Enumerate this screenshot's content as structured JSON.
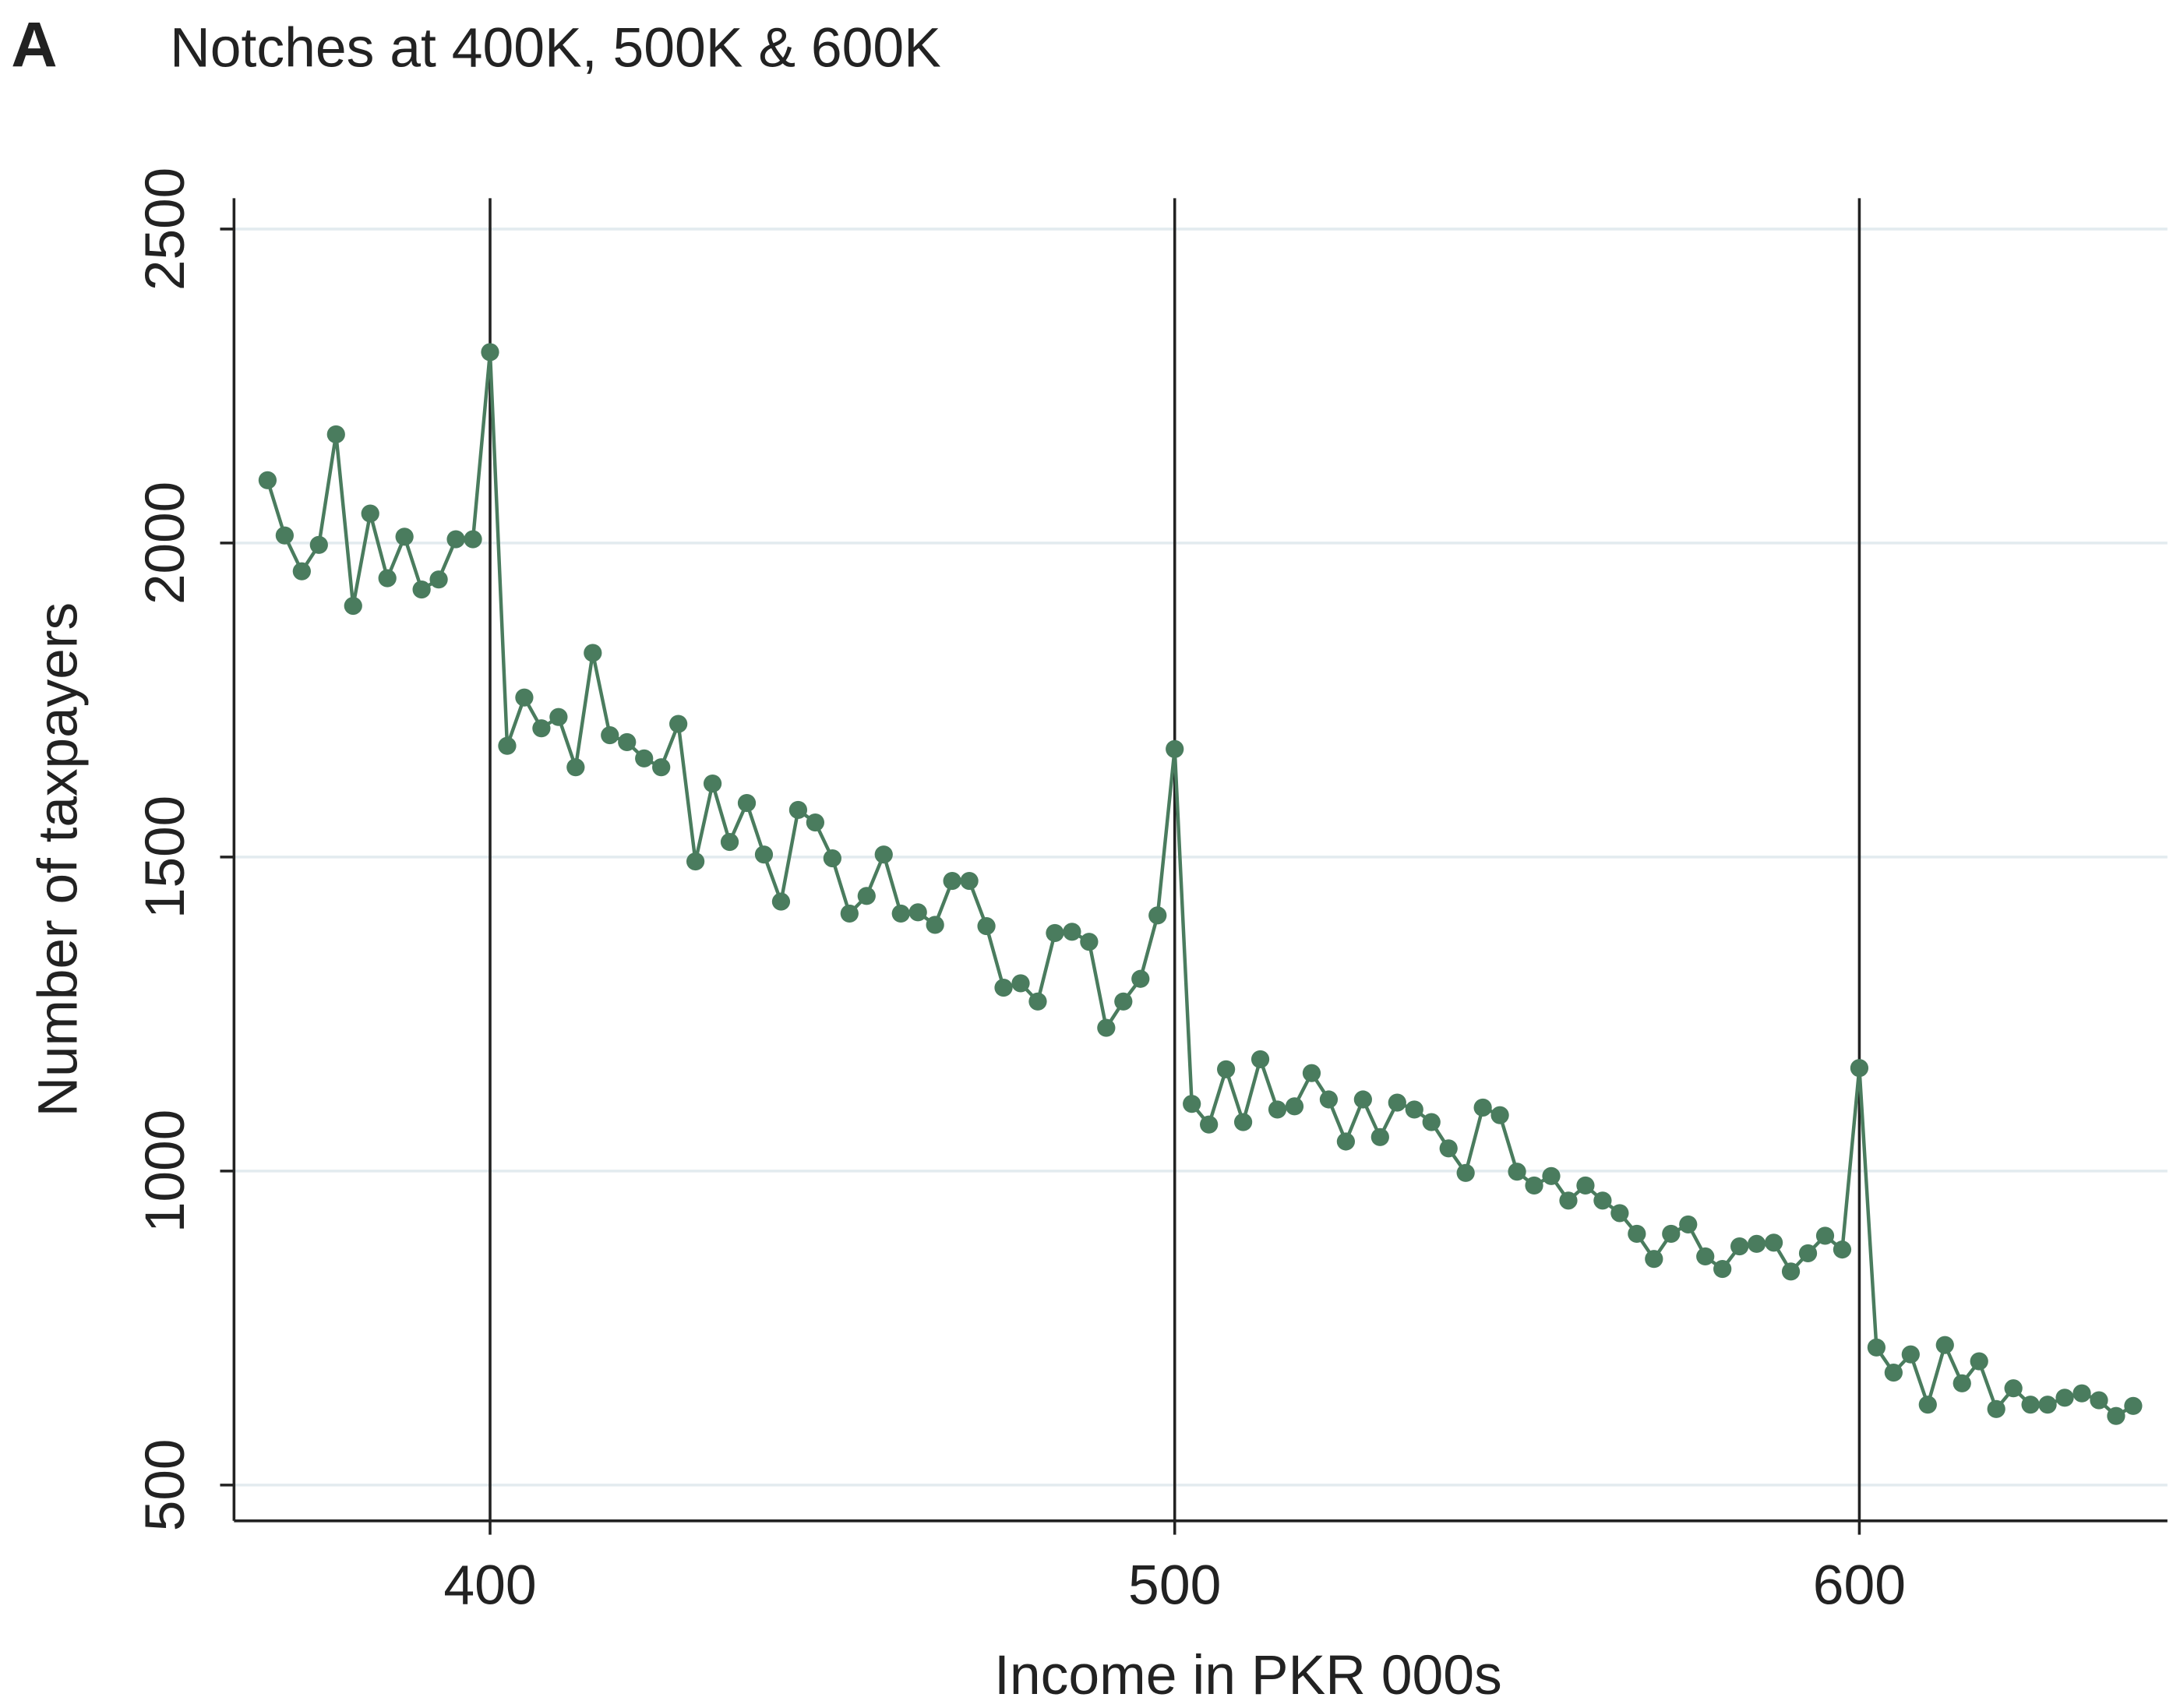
{
  "chart_data": {
    "type": "line",
    "panel_label": "A",
    "title": "Notches at 400K, 500K & 600K",
    "x_label": "Income in PKR 000s",
    "y_label": "Number of taxpayers",
    "x": [
      367.5,
      370,
      372.5,
      375,
      377.5,
      380,
      382.5,
      385,
      387.5,
      390,
      392.5,
      395,
      397.5,
      400,
      402.5,
      405,
      407.5,
      410,
      412.5,
      415,
      417.5,
      420,
      422.5,
      425,
      427.5,
      430,
      432.5,
      435,
      437.5,
      440,
      442.5,
      445,
      447.5,
      450,
      452.5,
      455,
      457.5,
      460,
      462.5,
      465,
      467.5,
      470,
      472.5,
      475,
      477.5,
      480,
      482.5,
      485,
      487.5,
      490,
      492.5,
      495,
      497.5,
      500,
      502.5,
      505,
      507.5,
      510,
      512.5,
      515,
      517.5,
      520,
      522.5,
      525,
      527.5,
      530,
      532.5,
      535,
      537.5,
      540,
      542.5,
      545,
      547.5,
      550,
      552.5,
      555,
      557.5,
      560,
      562.5,
      565,
      567.5,
      570,
      572.5,
      575,
      577.5,
      580,
      582.5,
      585,
      587.5,
      590,
      592.5,
      595,
      597.5,
      600,
      602.5,
      605,
      607.5,
      610,
      612.5,
      615,
      617.5,
      620,
      622.5,
      625,
      627.5,
      630,
      632.5,
      635,
      637.5,
      640
    ],
    "series": [
      {
        "color": "#4a7c5e",
        "values": [
          2100,
          2012,
          1955,
          1997,
          2173,
          1900,
          2047,
          1944,
          2010,
          1926,
          1942,
          2006,
          2006,
          2304,
          1677,
          1754,
          1705,
          1723,
          1643,
          1825,
          1694,
          1683,
          1657,
          1643,
          1712,
          1493,
          1617,
          1524,
          1586,
          1504,
          1429,
          1575,
          1555,
          1498,
          1410,
          1438,
          1504,
          1410,
          1412,
          1392,
          1462,
          1462,
          1390,
          1292,
          1299,
          1270,
          1379,
          1381,
          1365,
          1228,
          1270,
          1306,
          1407,
          1672,
          1107,
          1074,
          1162,
          1078,
          1178,
          1098,
          1103,
          1156,
          1114,
          1047,
          1114,
          1054,
          1109,
          1098,
          1078,
          1036,
          997,
          1101,
          1089,
          999,
          977,
          992,
          953,
          977,
          953,
          933,
          900,
          860,
          900,
          915,
          864,
          844,
          880,
          884,
          886,
          840,
          869,
          897,
          875,
          1164,
          719,
          679,
          708,
          628,
          723,
          662,
          697,
          621,
          654,
          628,
          628,
          639,
          646,
          635,
          610,
          626
        ]
      }
    ],
    "vlines": [
      400,
      500,
      600
    ],
    "xlim": [
      362.6,
      645
    ],
    "ylim": [
      443,
      2549
    ],
    "xticks": [
      400,
      500,
      600
    ],
    "yticks": [
      500,
      1000,
      1500,
      2000,
      2500
    ],
    "grid": true,
    "grid_color": "#e3ebef"
  }
}
